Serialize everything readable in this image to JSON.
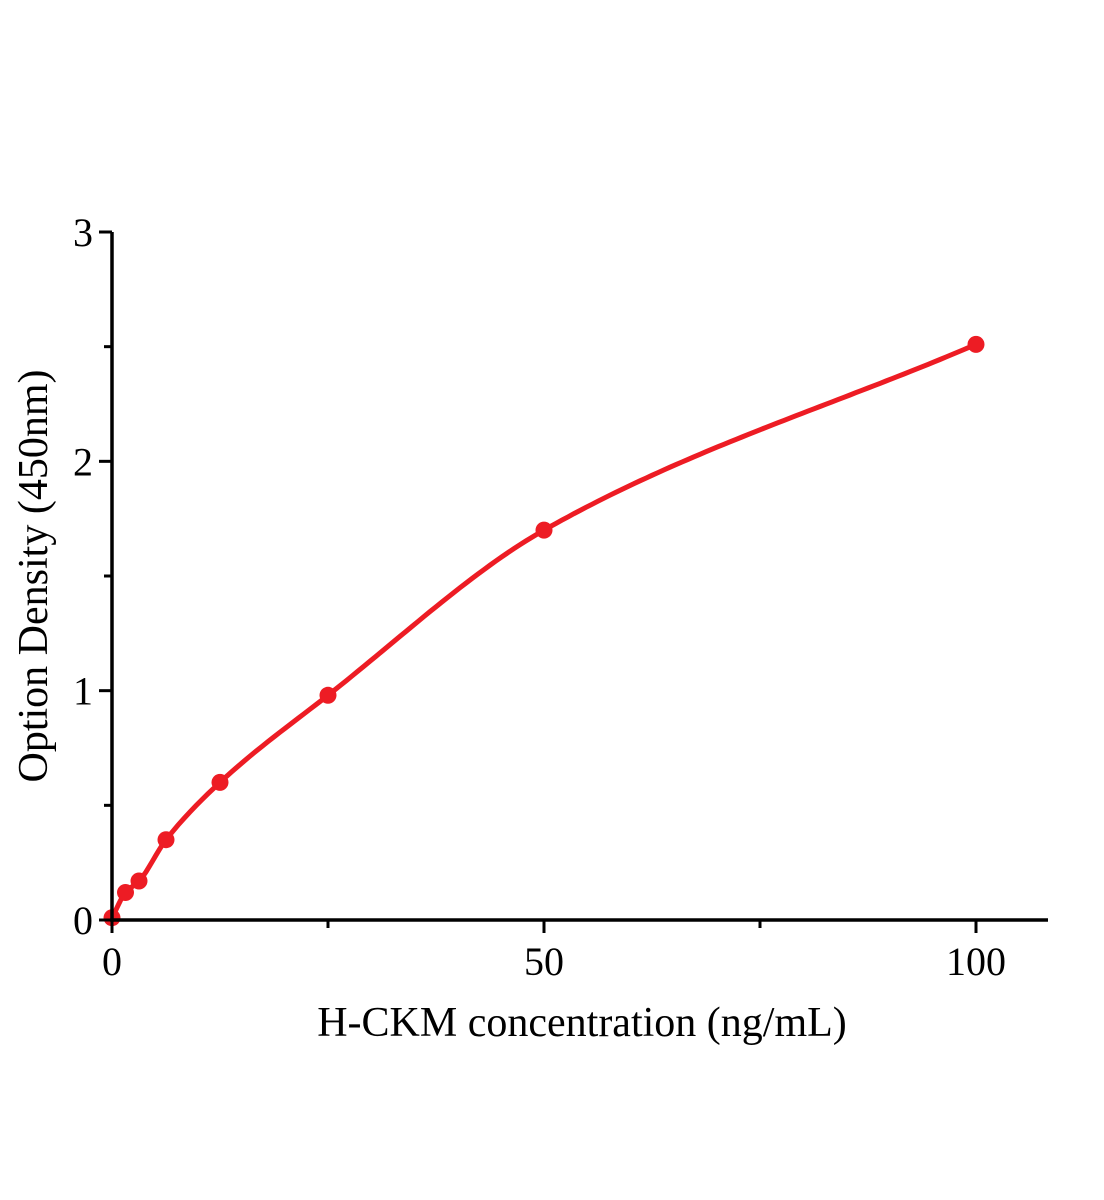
{
  "chart_data": {
    "type": "scatter",
    "title": "",
    "xlabel": "H-CKM concentration (ng/mL)",
    "ylabel": "Option Density (450nm)",
    "x": [
      0,
      1.5625,
      3.125,
      6.25,
      12.5,
      25,
      50,
      100
    ],
    "y": [
      0.01,
      0.12,
      0.17,
      0.35,
      0.6,
      0.98,
      1.7,
      2.51
    ],
    "curve": "smooth saturating fit through all points",
    "xlim": [
      0,
      108
    ],
    "ylim": [
      0,
      3
    ],
    "grid": "off",
    "legend": "none",
    "x_major_ticks": [
      0,
      50,
      100
    ],
    "x_tick_labels": [
      "0",
      "50",
      "100"
    ],
    "x_minor_ticks": [
      25,
      75
    ],
    "y_major_ticks": [
      0,
      1,
      2,
      3
    ],
    "y_tick_labels": [
      "0",
      "1",
      "2",
      "3"
    ],
    "y_minor_ticks": [
      0.5,
      1.5,
      2.5
    ],
    "colors": {
      "curve": "#ED1C24",
      "marker": "#ED1C24",
      "axis": "#000000",
      "text": "#000000",
      "background": "#FFFFFF"
    }
  }
}
